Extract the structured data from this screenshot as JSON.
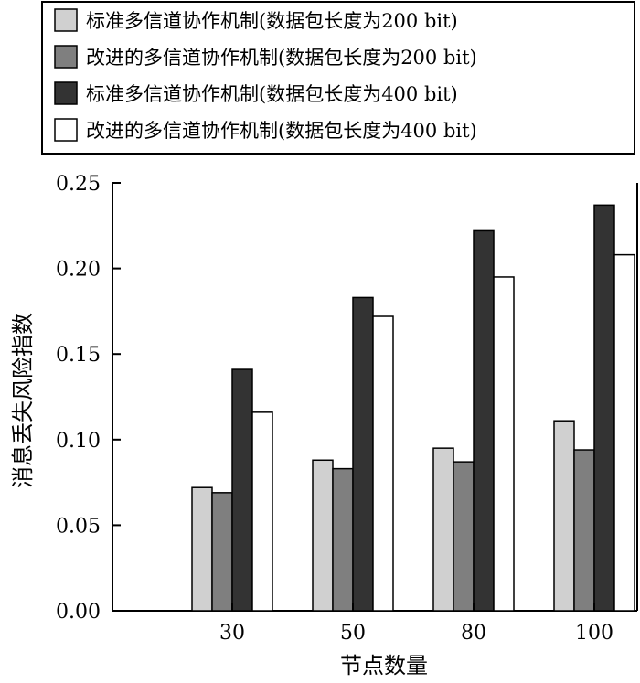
{
  "chart_data": {
    "type": "bar",
    "categories": [
      "30",
      "50",
      "80",
      "100"
    ],
    "series": [
      {
        "name": "标准多信道协作机制(数据包长度为200 bit)",
        "values": [
          0.072,
          0.088,
          0.095,
          0.111
        ],
        "color": "#d0d0d0"
      },
      {
        "name": "改进的多信道协作机制(数据包长度为200 bit)",
        "values": [
          0.069,
          0.083,
          0.087,
          0.094
        ],
        "color": "#7f7f7f"
      },
      {
        "name": "标准多信道协作机制(数据包长度为400 bit)",
        "values": [
          0.141,
          0.183,
          0.222,
          0.237
        ],
        "color": "#333333"
      },
      {
        "name": "改进的多信道协作机制(数据包长度为400 bit)",
        "values": [
          0.116,
          0.172,
          0.195,
          0.208
        ],
        "color": "#ffffff"
      }
    ],
    "xlabel": "节点数量",
    "ylabel": "消息丢失风险指数",
    "ylim": [
      0,
      0.25
    ],
    "yticks": [
      "0.00",
      "0.05",
      "0.10",
      "0.15",
      "0.20",
      "0.25"
    ],
    "grid": false,
    "legend_position": "top"
  }
}
